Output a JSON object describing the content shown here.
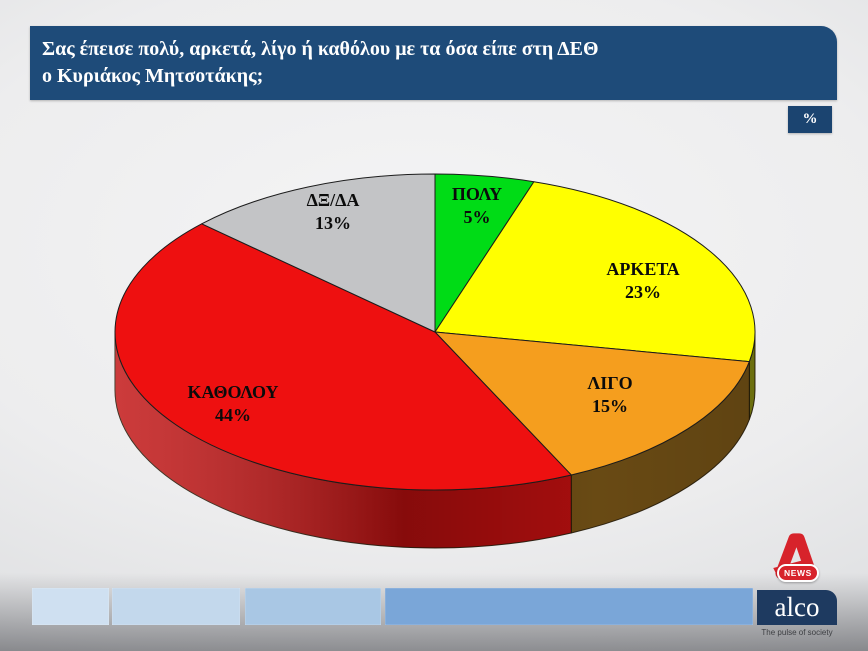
{
  "header": {
    "title_line1": "Σας έπεισε πολύ, αρκετά, λίγο ή καθόλου με τα όσα είπε στη ΔΕΘ",
    "title_line2": "ο Κυριάκος Μητσοτάκης;",
    "unit_badge": "%",
    "bar_color": "#1E4B79",
    "badge_color": "#1B4470"
  },
  "chart_data": {
    "type": "pie",
    "style": "3d",
    "title": "Σας έπεισε πολύ, αρκετά, λίγο ή καθόλου με τα όσα είπε στη ΔΕΘ ο Κυριάκος Μητσοτάκης;",
    "unit": "%",
    "direction": "clockwise",
    "start_angle_deg": 0,
    "slices": [
      {
        "name": "ΠΟΛΥ",
        "value": 5,
        "value_label": "5%",
        "color": "#00DC16",
        "side_color": "#5F9A0E"
      },
      {
        "name": "ΑΡΚΕΤΑ",
        "value": 23,
        "value_label": "23%",
        "color": "#FFFF00",
        "side_color": "#8A8E12"
      },
      {
        "name": "ΛΙΓΟ",
        "value": 15,
        "value_label": "15%",
        "color": "#F59E1E",
        "side_color": "#7A5617"
      },
      {
        "name": "ΚΑΘΟΛΟΥ",
        "value": 44,
        "value_label": "44%",
        "color": "#EE1010",
        "side_color": "#C11010"
      },
      {
        "name": "ΔΞ/ΔΑ",
        "value": 13,
        "value_label": "13%",
        "color": "#C3C4C6",
        "side_color": "#909194"
      }
    ]
  },
  "footer": {
    "bar_colors": [
      "#CFE0F1",
      "#C3D8EC",
      "#A9C7E4",
      "#7AA6D8"
    ],
    "alpha_news_label": "NEWS",
    "alco_label": "alco",
    "alco_tagline": "The pulse of society",
    "alpha_red": "#D7232B",
    "alco_navy": "#1E3A60"
  }
}
